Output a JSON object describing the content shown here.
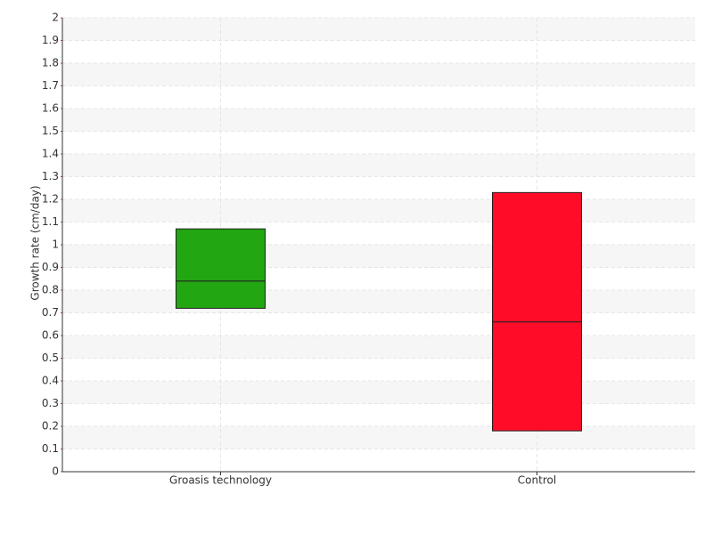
{
  "chart_data": {
    "type": "box",
    "y_label": "Growth rate (cm/day)",
    "categories": [
      "Groasis technology",
      "Control"
    ],
    "boxes": [
      {
        "lower": 0.72,
        "median": 0.84,
        "upper": 1.07,
        "color": "#22a612"
      },
      {
        "lower": 0.18,
        "median": 0.66,
        "upper": 1.23,
        "color": "#ff0c29"
      }
    ],
    "ylim": [
      0,
      2
    ],
    "yticks": [
      0,
      0.1,
      0.2,
      0.3,
      0.4,
      0.5,
      0.6,
      0.7,
      0.8,
      0.9,
      1,
      1.1,
      1.2,
      1.3,
      1.4,
      1.5,
      1.6,
      1.7,
      1.8,
      1.9,
      2
    ],
    "grid": true
  }
}
